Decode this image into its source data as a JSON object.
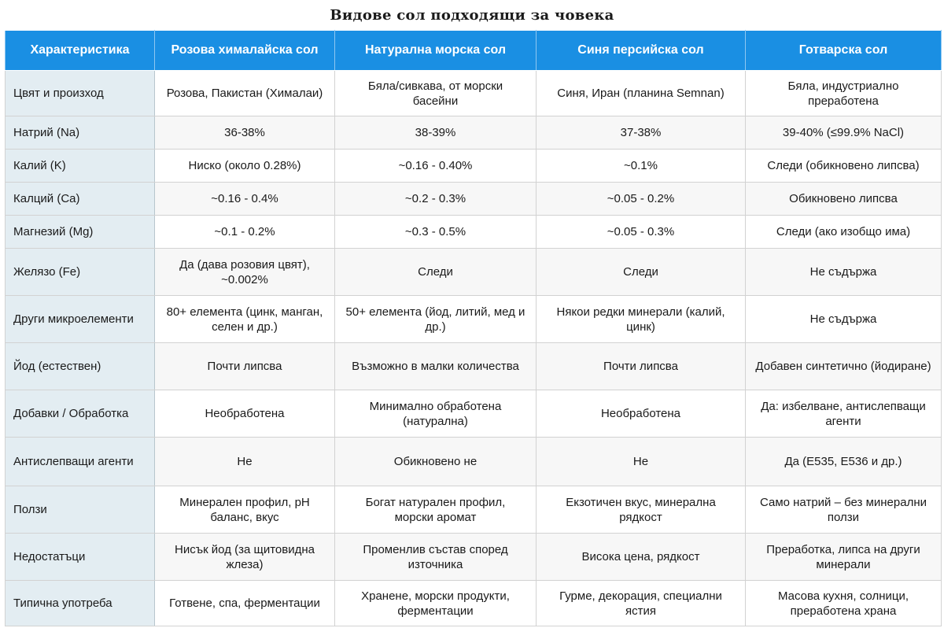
{
  "title": "Видове сол подходящи за човека",
  "headers": [
    "Характеристика",
    "Розова хималайска сол",
    "Натурална морска сол",
    "Синя персийска сол",
    "Готварска сол"
  ],
  "rows": [
    [
      "Цвят и произход",
      "Розова, Пакистан (Хималаи)",
      "Бяла/сивкава, от морски басейни",
      "Синя, Иран (планина Semnan)",
      "Бяла, индустриално преработена"
    ],
    [
      "Натрий (Na)",
      "36-38%",
      "38-39%",
      "37-38%",
      "39-40% (≤99.9% NaCl)"
    ],
    [
      "Калий (K)",
      "Ниско (около 0.28%)",
      "~0.16 - 0.40%",
      "~0.1%",
      "Следи (обикновено липсва)"
    ],
    [
      "Калций (Ca)",
      "~0.16 - 0.4%",
      "~0.2 - 0.3%",
      "~0.05 - 0.2%",
      "Обикновено липсва"
    ],
    [
      "Магнезий (Mg)",
      "~0.1 - 0.2%",
      "~0.3 - 0.5%",
      "~0.05 - 0.3%",
      "Следи (ако изобщо има)"
    ],
    [
      "Желязо (Fe)",
      "Да (дава розовия цвят), ~0.002%",
      "Следи",
      "Следи",
      "Не съдържа"
    ],
    [
      "Други микроелементи",
      "80+ елемента (цинк, манган, селен и др.)",
      "50+ елемента (йод, литий, мед и др.)",
      "Някои редки минерали (калий, цинк)",
      "Не съдържа"
    ],
    [
      "Йод (естествен)",
      "Почти липсва",
      "Възможно в малки количества",
      "Почти липсва",
      "Добавен синтетично (йодиране)"
    ],
    [
      "Добавки / Обработка",
      "Необработена",
      "Минимално обработена (натурална)",
      "Необработена",
      "Да: избелване, антислепващи агенти"
    ],
    [
      "Антислепващи агенти",
      "Не",
      "Обикновено не",
      "Не",
      "Да (E535, E536 и др.)"
    ],
    [
      "Ползи",
      "Минерален профил, pH баланс, вкус",
      "Богат натурален профил, морски аромат",
      "Екзотичен вкус, минерална рядкост",
      "Само натрий – без минерални ползи"
    ],
    [
      "Недостатъци",
      "Нисък йод (за щитовидна жлеза)",
      "Променлив състав според източника",
      "Висока цена, рядкост",
      "Преработка, липса на други минерали"
    ],
    [
      "Типична употреба",
      "Готвене, спа, ферментации",
      "Хранене, морски продукти, ферментации",
      "Гурме, декорация, специални ястия",
      "Масова кухня, солници, преработена храна"
    ]
  ]
}
